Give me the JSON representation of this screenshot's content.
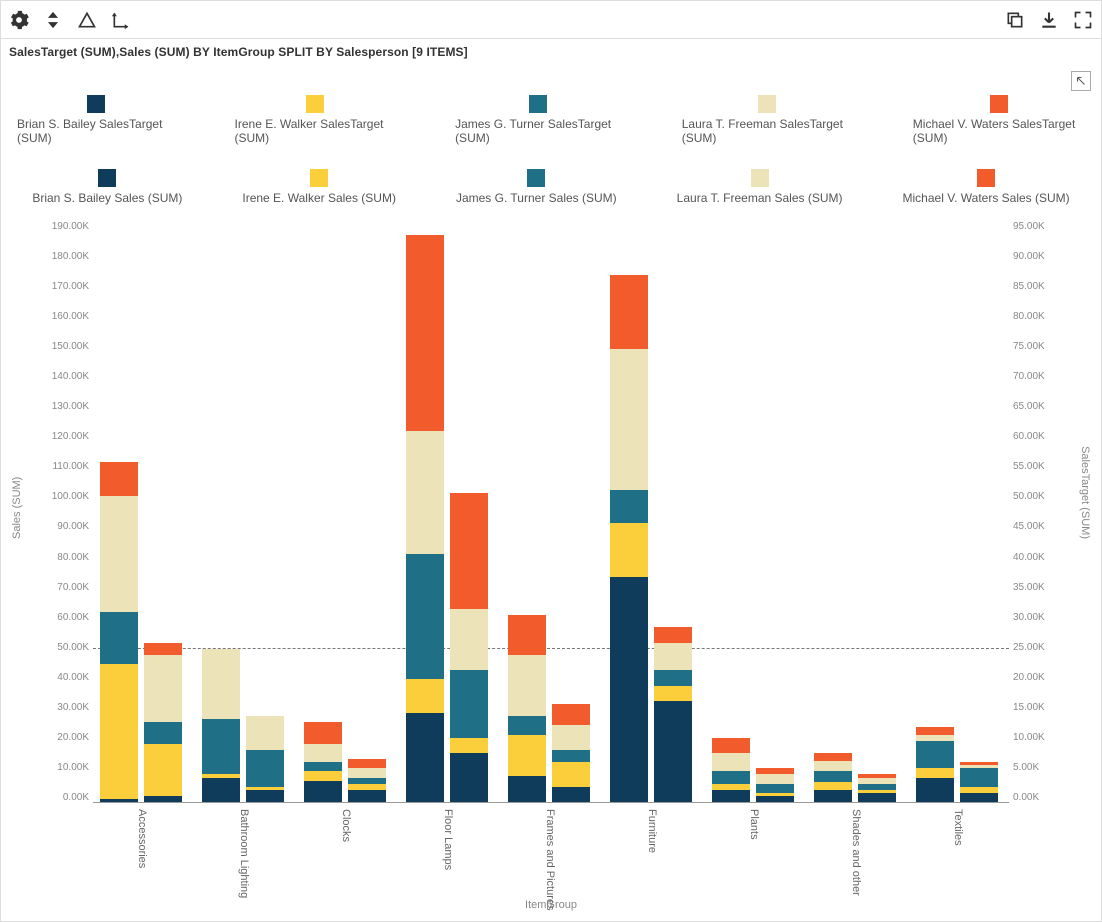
{
  "title": "SalesTarget (SUM),Sales (SUM) BY ItemGroup SPLIT BY Salesperson [9 ITEMS]",
  "x_axis_title": "ItemGroup",
  "y_left_title": "Sales (SUM)",
  "y_right_title": "SalesTarget (SUM)",
  "colors": {
    "bailey": "#0e3c5a",
    "walker": "#fbcf3b",
    "turner": "#1f6f87",
    "freeman": "#ece3b8",
    "waters": "#f25c2c"
  },
  "legend_target": [
    {
      "key": "bailey",
      "label": "Brian S. Bailey SalesTarget (SUM)"
    },
    {
      "key": "walker",
      "label": "Irene E. Walker SalesTarget (SUM)"
    },
    {
      "key": "turner",
      "label": "James G. Turner SalesTarget (SUM)"
    },
    {
      "key": "freeman",
      "label": "Laura T. Freeman SalesTarget (SUM)"
    },
    {
      "key": "waters",
      "label": "Michael V. Waters SalesTarget (SUM)"
    }
  ],
  "legend_sales": [
    {
      "key": "bailey",
      "label": "Brian S. Bailey Sales (SUM)"
    },
    {
      "key": "walker",
      "label": "Irene E. Walker Sales (SUM)"
    },
    {
      "key": "turner",
      "label": "James G. Turner Sales (SUM)"
    },
    {
      "key": "freeman",
      "label": "Laura T. Freeman Sales (SUM)"
    },
    {
      "key": "waters",
      "label": "Michael V. Waters Sales (SUM)"
    }
  ],
  "y_left": {
    "max": 190000,
    "step": 10000,
    "unit_suffix": "K"
  },
  "y_right": {
    "max": 95000,
    "step": 5000,
    "unit_suffix": "K"
  },
  "dash_line_left_value": 50000,
  "categories": [
    {
      "name": "Accessories",
      "target": {
        "bailey": 1000,
        "walker": 44000,
        "turner": 17000,
        "freeman": 38000,
        "waters": 11000
      },
      "sales": {
        "bailey": 1000,
        "walker": 8500,
        "turner": 3500,
        "freeman": 11000,
        "waters": 2000
      }
    },
    {
      "name": "Bathroom Lighting",
      "target": {
        "bailey": 8000,
        "walker": 1000,
        "turner": 18000,
        "freeman": 23000,
        "waters": 0
      },
      "sales": {
        "bailey": 2000,
        "walker": 500,
        "turner": 6000,
        "freeman": 5500,
        "waters": 0
      }
    },
    {
      "name": "Clocks",
      "target": {
        "bailey": 7000,
        "walker": 3000,
        "turner": 3000,
        "freeman": 6000,
        "waters": 7000
      },
      "sales": {
        "bailey": 2000,
        "walker": 1000,
        "turner": 1000,
        "freeman": 1500,
        "waters": 1500
      }
    },
    {
      "name": "Floor Lamps",
      "target": {
        "bailey": 29000,
        "walker": 11000,
        "turner": 41000,
        "freeman": 40000,
        "waters": 64000
      },
      "sales": {
        "bailey": 8000,
        "walker": 2500,
        "turner": 11000,
        "freeman": 10000,
        "waters": 19000
      }
    },
    {
      "name": "Frames and Pictures",
      "target": {
        "bailey": 8500,
        "walker": 13500,
        "turner": 6000,
        "freeman": 20000,
        "waters": 13000
      },
      "sales": {
        "bailey": 2500,
        "walker": 4000,
        "turner": 2000,
        "freeman": 4000,
        "waters": 3500
      }
    },
    {
      "name": "Furniture",
      "target": {
        "bailey": 73500,
        "walker": 17500,
        "turner": 11000,
        "freeman": 46000,
        "waters": 24000
      },
      "sales": {
        "bailey": 16500,
        "walker": 2500,
        "turner": 2500,
        "freeman": 4500,
        "waters": 2500
      }
    },
    {
      "name": "Plants",
      "target": {
        "bailey": 4000,
        "walker": 2000,
        "turner": 4000,
        "freeman": 6000,
        "waters": 5000
      },
      "sales": {
        "bailey": 1000,
        "walker": 500,
        "turner": 1500,
        "freeman": 1500,
        "waters": 1000
      }
    },
    {
      "name": "Shades and other",
      "target": {
        "bailey": 4000,
        "walker": 2500,
        "turner": 3500,
        "freeman": 3500,
        "waters": 2500
      },
      "sales": {
        "bailey": 1500,
        "walker": 500,
        "turner": 1000,
        "freeman": 1000,
        "waters": 500
      }
    },
    {
      "name": "Textiles",
      "target": {
        "bailey": 8000,
        "walker": 3000,
        "turner": 9000,
        "freeman": 2000,
        "waters": 2500
      },
      "sales": {
        "bailey": 1500,
        "walker": 1000,
        "turner": 3000,
        "freeman": 500,
        "waters": 500
      }
    }
  ]
}
